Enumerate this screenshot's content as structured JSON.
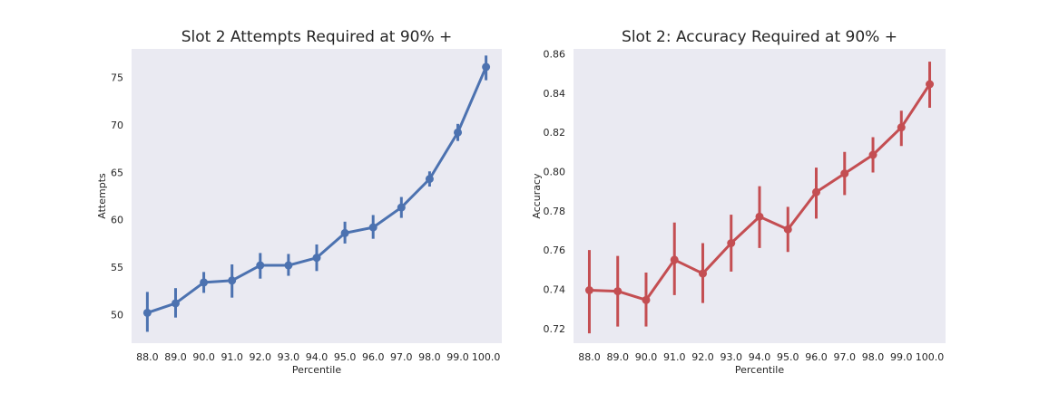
{
  "chart_data": [
    {
      "type": "line",
      "title": "Slot 2 Attempts Required at 90% +",
      "xlabel": "Percentile",
      "ylabel": "Attempts",
      "categories": [
        "88.0",
        "89.0",
        "90.0",
        "91.0",
        "92.0",
        "93.0",
        "94.0",
        "95.0",
        "96.0",
        "97.0",
        "98.0",
        "99.0",
        "100.0"
      ],
      "values": [
        50.2,
        51.2,
        53.4,
        53.6,
        55.2,
        55.2,
        56.0,
        58.6,
        59.2,
        61.3,
        64.3,
        69.2,
        76.1
      ],
      "error_low": [
        48.2,
        49.7,
        52.3,
        51.8,
        53.8,
        54.1,
        54.6,
        57.5,
        58.0,
        60.2,
        63.5,
        68.3,
        74.7
      ],
      "error_high": [
        52.4,
        52.8,
        54.5,
        55.3,
        56.5,
        56.4,
        57.4,
        59.8,
        60.5,
        62.4,
        65.1,
        70.1,
        77.3
      ],
      "ylim": [
        47.0,
        78.0
      ],
      "yticks": [
        50,
        55,
        60,
        65,
        70,
        75
      ],
      "ytick_labels": [
        "50",
        "55",
        "60",
        "65",
        "70",
        "75"
      ],
      "color": "#4c72b0",
      "grid": false
    },
    {
      "type": "line",
      "title": "Slot 2: Accuracy Required at 90% +",
      "xlabel": "Percentile",
      "ylabel": "Accuracy",
      "categories": [
        "88.0",
        "89.0",
        "90.0",
        "91.0",
        "92.0",
        "93.0",
        "94.0",
        "95.0",
        "96.0",
        "97.0",
        "98.0",
        "99.0",
        "100.0"
      ],
      "values": [
        0.7395,
        0.739,
        0.7345,
        0.755,
        0.748,
        0.7635,
        0.777,
        0.7705,
        0.7895,
        0.799,
        0.8085,
        0.8225,
        0.8445
      ],
      "error_low": [
        0.7175,
        0.721,
        0.721,
        0.737,
        0.733,
        0.749,
        0.761,
        0.759,
        0.776,
        0.788,
        0.7995,
        0.813,
        0.8325
      ],
      "error_high": [
        0.76,
        0.757,
        0.7485,
        0.774,
        0.7635,
        0.778,
        0.7925,
        0.782,
        0.802,
        0.81,
        0.8175,
        0.831,
        0.856
      ],
      "ylim": [
        0.7125,
        0.8625
      ],
      "yticks": [
        0.72,
        0.74,
        0.76,
        0.78,
        0.8,
        0.82,
        0.84,
        0.86
      ],
      "ytick_labels": [
        "0.72",
        "0.74",
        "0.76",
        "0.78",
        "0.80",
        "0.82",
        "0.84",
        "0.86"
      ],
      "color": "#c44e52",
      "grid": false
    }
  ]
}
